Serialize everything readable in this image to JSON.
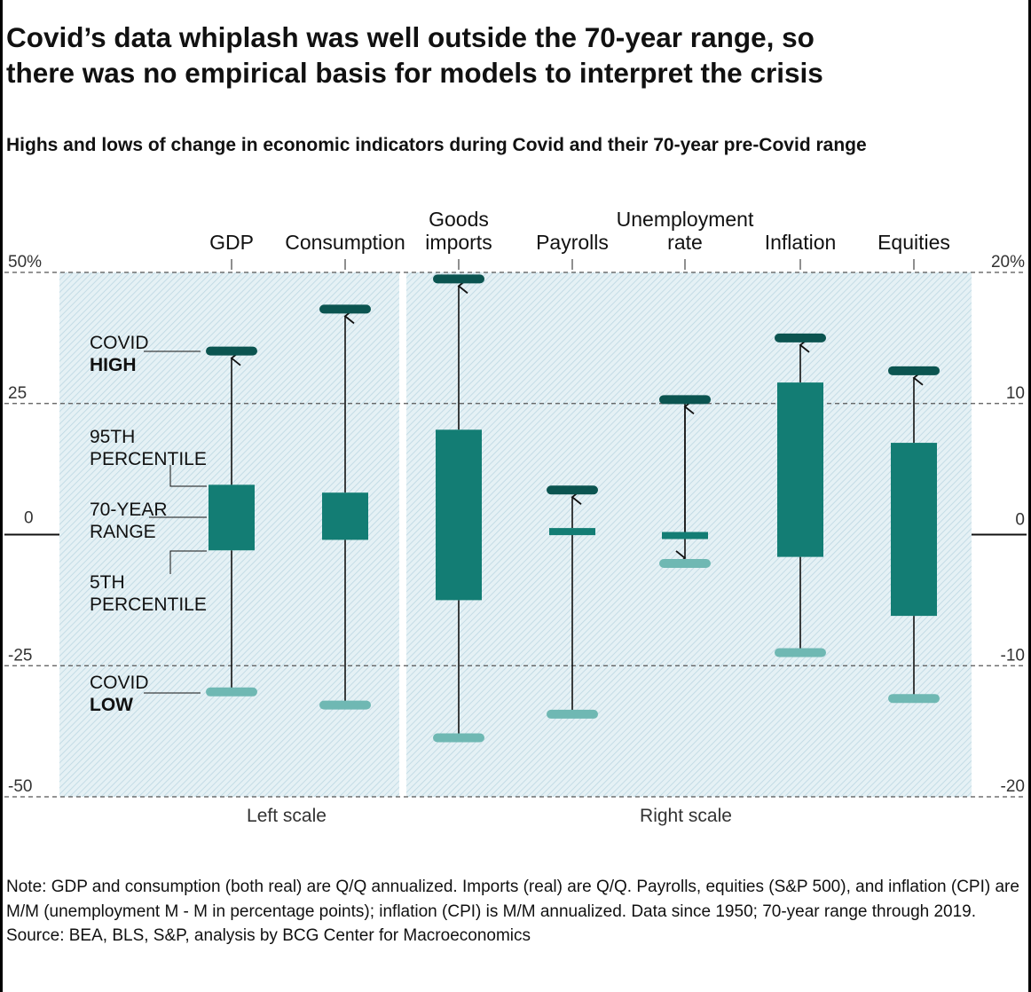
{
  "title_lines": [
    "Covid’s data whiplash was well outside the 70-year range, so",
    "there was no empirical basis for models to interpret the crisis"
  ],
  "subtitle": "Highs and lows of change in economic indicators during Covid and their 70-year pre-Covid range",
  "note": "Note: GDP and consumption (both real) are Q/Q annualized. Imports (real) are Q/Q. Payrolls, equities (S&P 500), and inflation (CPI) are M/M (unemployment M - M in percentage points); inflation (CPI) is M/M annualized. Data since 1950; 70-year range through 2019.",
  "source": "Source: BEA, BLS, S&P, analysis by BCG Center for Macroeconomics",
  "colors": {
    "covid_high": "#0b5450",
    "covid_low": "#6fb8b3",
    "range": "#137d74",
    "hatch": "#bcd7e2",
    "panel": "#e5f1f5"
  },
  "chart_data": {
    "type": "range",
    "left_axis": {
      "ticks": [
        {
          "value": 50,
          "label": "50%"
        },
        {
          "value": 25,
          "label": "25"
        },
        {
          "value": 0,
          "label": "0"
        },
        {
          "value": -25,
          "label": "-25"
        },
        {
          "value": -50,
          "label": "-50"
        }
      ],
      "min": -50,
      "max": 50,
      "caption": "Left scale"
    },
    "right_axis": {
      "ticks": [
        {
          "value": 20,
          "label": "20%"
        },
        {
          "value": 10,
          "label": "10"
        },
        {
          "value": 0,
          "label": "0"
        },
        {
          "value": -10,
          "label": "-10"
        },
        {
          "value": -20,
          "label": "-20"
        }
      ],
      "min": -20,
      "max": 20,
      "caption": "Right scale"
    },
    "indicators": [
      {
        "label_lines": [
          "GDP"
        ],
        "scale": "left",
        "p5": -3,
        "p95": 9.5,
        "covid_high": 35,
        "covid_low": -30
      },
      {
        "label_lines": [
          "Consumption"
        ],
        "scale": "left",
        "p5": -1,
        "p95": 8,
        "covid_high": 43,
        "covid_low": -32.5
      },
      {
        "label_lines": [
          "Goods",
          "imports"
        ],
        "scale": "right",
        "p5": -5,
        "p95": 8,
        "covid_high": 19.5,
        "covid_low": -15.5
      },
      {
        "label_lines": [
          "Payrolls"
        ],
        "scale": "right",
        "p5": 0,
        "p95": 0.5,
        "covid_high": 3.4,
        "covid_low": -13.7
      },
      {
        "label_lines": [
          "Unemployment",
          "rate"
        ],
        "scale": "right",
        "p5": -0.3,
        "p95": 0.2,
        "covid_high": 10.3,
        "covid_low": -2.2
      },
      {
        "label_lines": [
          "Inflation"
        ],
        "scale": "right",
        "p5": -1.7,
        "p95": 11.6,
        "covid_high": 15,
        "covid_low": -9
      },
      {
        "label_lines": [
          "Equities"
        ],
        "scale": "right",
        "p5": -6.2,
        "p95": 7,
        "covid_high": 12.5,
        "covid_low": -12.5
      }
    ],
    "annotations": {
      "covid_high": [
        "COVID",
        "HIGH"
      ],
      "p95": [
        "95TH",
        "PERCENTILE"
      ],
      "range": [
        "70-YEAR",
        "RANGE"
      ],
      "p5": [
        "5TH",
        "PERCENTILE"
      ],
      "covid_low": [
        "COVID",
        "LOW"
      ]
    }
  }
}
